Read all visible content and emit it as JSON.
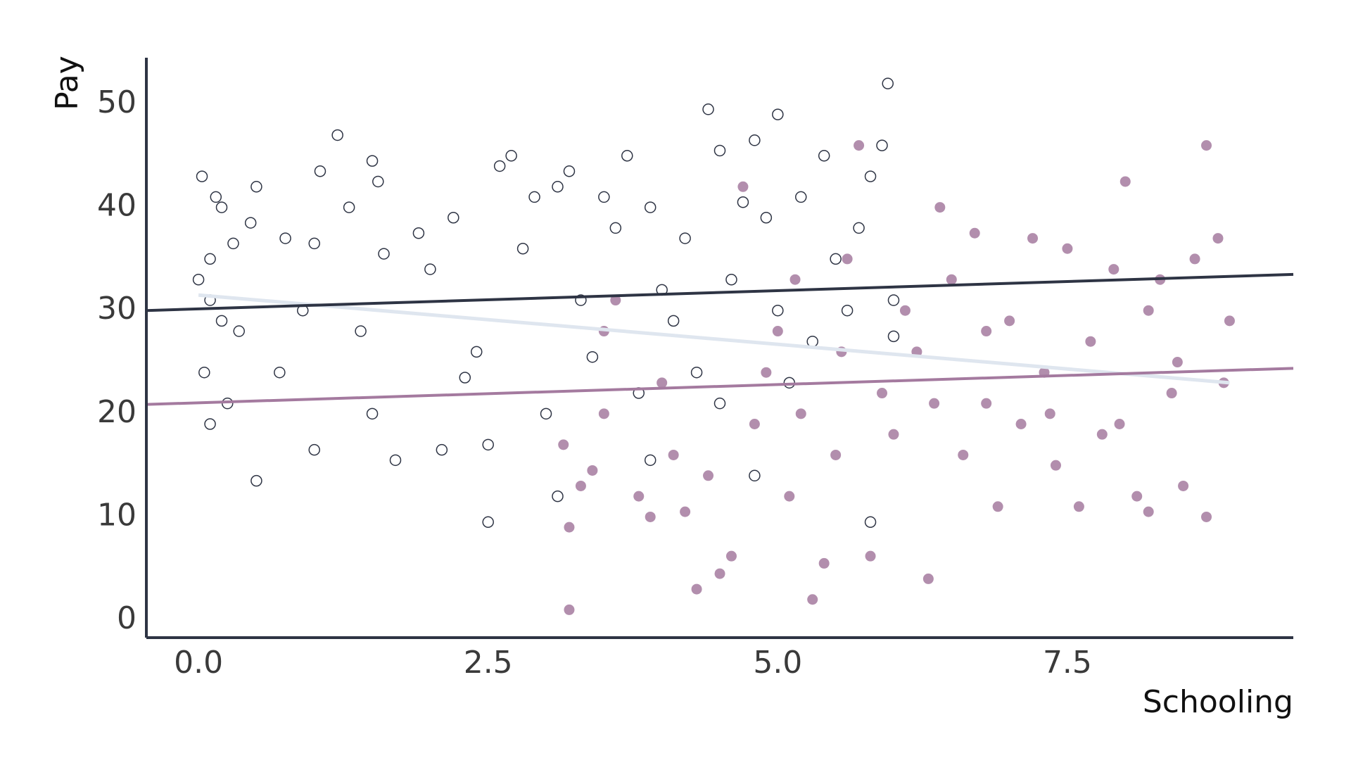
{
  "chart_data": {
    "type": "scatter",
    "x_label": "Schooling",
    "y_label": "Pay",
    "xlim": [
      -0.45,
      9.45
    ],
    "ylim": [
      -1.7,
      54.5
    ],
    "xticks": [
      {
        "value": 0,
        "label": "0.0"
      },
      2.5,
      {
        "value": 5,
        "label": "5.0"
      },
      7.5
    ],
    "yticks": [
      0,
      10,
      20,
      30,
      40,
      50
    ],
    "series": [
      {
        "color": "#2e3444",
        "marker": "open",
        "x": [
          0.03,
          0.15,
          0.2,
          0.5,
          0.45,
          0.1,
          0.3,
          0.0,
          0.1,
          0.2,
          0.35,
          0.05,
          0.1,
          0.25,
          0.5,
          0.7,
          0.75,
          0.9,
          1.0,
          1.0,
          1.05,
          1.2,
          1.3,
          1.4,
          1.5,
          1.55,
          1.5,
          1.6,
          1.7,
          1.9,
          2.0,
          2.1,
          2.2,
          2.3,
          2.4,
          2.5,
          2.6,
          2.7,
          2.5,
          2.8,
          2.9,
          3.0,
          3.1,
          3.1,
          3.2,
          3.3,
          3.4,
          3.5,
          3.6,
          3.7,
          3.8,
          3.9,
          4.0,
          4.1,
          4.2,
          4.3,
          4.4,
          4.5,
          4.6,
          4.7,
          4.8,
          4.9,
          5.0,
          5.0,
          5.1,
          5.2,
          5.3,
          5.4,
          5.5,
          5.6,
          5.7,
          5.8,
          5.8,
          5.9,
          5.95,
          6.0,
          6.0,
          4.8,
          4.5,
          3.9
        ],
        "values": [
          43,
          41,
          40,
          42,
          38.5,
          35,
          36.5,
          33,
          31,
          29,
          28,
          24,
          19,
          21,
          13.5,
          24,
          37,
          30,
          36.5,
          16.5,
          43.5,
          47,
          40,
          28,
          44.5,
          42.5,
          20,
          35.5,
          15.5,
          37.5,
          34,
          16.5,
          39,
          23.5,
          26,
          17,
          44,
          45,
          9.5,
          36,
          41,
          20,
          42,
          12,
          43.5,
          31,
          25.5,
          41,
          38,
          45,
          22,
          40,
          32,
          29,
          37,
          24,
          49.5,
          45.5,
          33,
          40.5,
          46.5,
          39,
          30,
          49,
          23,
          41,
          27,
          45,
          35,
          30,
          38,
          9.5,
          43,
          46,
          52,
          31,
          27.5,
          14,
          21,
          15.5
        ]
      },
      {
        "color": "#a47a9f",
        "marker": "filled",
        "x": [
          3.2,
          3.2,
          3.3,
          3.5,
          3.6,
          3.8,
          3.9,
          4.0,
          4.2,
          4.3,
          4.4,
          4.5,
          4.6,
          4.7,
          4.8,
          5.0,
          5.1,
          5.2,
          5.3,
          5.4,
          5.5,
          5.6,
          5.7,
          5.8,
          5.9,
          6.0,
          6.2,
          6.3,
          6.4,
          6.5,
          6.6,
          6.7,
          6.8,
          6.9,
          7.0,
          7.1,
          7.2,
          7.3,
          7.4,
          7.5,
          7.6,
          7.7,
          7.8,
          7.9,
          8.0,
          8.1,
          8.2,
          8.3,
          8.4,
          8.5,
          8.6,
          8.7,
          8.7,
          8.8,
          8.9,
          8.85,
          3.5,
          4.1,
          6.1,
          7.35,
          8.45,
          5.15,
          3.15,
          4.9,
          6.35,
          7.95,
          6.8,
          5.55,
          3.4,
          8.2
        ],
        "values": [
          1,
          9,
          13,
          20,
          31,
          12,
          10,
          23,
          10.5,
          3,
          14,
          4.5,
          6.2,
          42,
          19,
          28,
          12,
          20,
          2,
          5.5,
          16,
          35,
          46,
          6.2,
          22,
          18,
          26,
          4,
          40,
          33,
          16,
          37.5,
          21,
          11,
          29,
          19,
          37,
          24,
          15,
          36,
          11,
          27,
          18,
          34,
          42.5,
          12,
          10.5,
          33,
          22,
          13,
          35,
          46,
          10,
          37,
          29,
          23,
          28,
          16,
          30,
          20,
          25,
          33,
          17,
          24,
          21,
          19,
          28,
          26,
          14.5,
          30
        ]
      }
    ],
    "lines": [
      {
        "color": "#dfe6ef",
        "x": [
          0,
          8.9
        ],
        "values": [
          31.5,
          23
        ]
      },
      {
        "color": "#2e3444",
        "x": [
          -0.45,
          9.45
        ],
        "values": [
          30,
          33.5
        ]
      },
      {
        "color": "#a47a9f",
        "x": [
          -0.45,
          9.45
        ],
        "values": [
          20.9,
          24.4
        ]
      }
    ]
  }
}
